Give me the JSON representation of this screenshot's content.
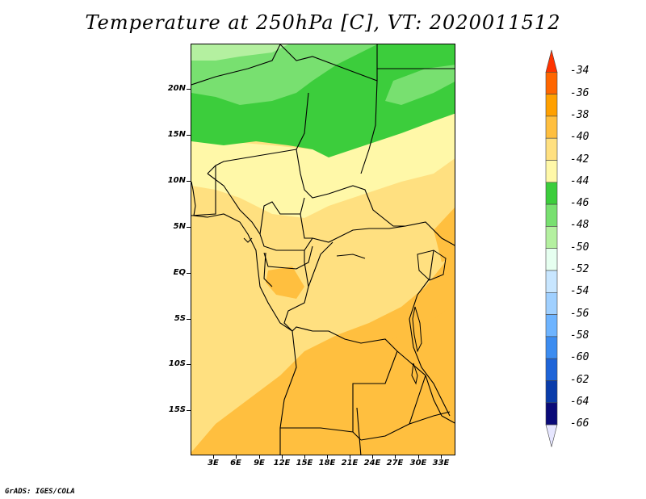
{
  "title": "Temperature at 250hPa [C], VT: 2020011512",
  "footer": "GrADS: IGES/COLA",
  "lat_labels": [
    "20N",
    "15N",
    "10N",
    "5N",
    "EQ",
    "5S",
    "10S",
    "15S"
  ],
  "lon_labels": [
    "3E",
    "6E",
    "9E",
    "12E",
    "15E",
    "18E",
    "21E",
    "24E",
    "27E",
    "30E",
    "33E"
  ],
  "legend": {
    "labels": [
      "-34",
      "-36",
      "-38",
      "-40",
      "-42",
      "-44",
      "-46",
      "-48",
      "-50",
      "-52",
      "-54",
      "-56",
      "-58",
      "-60",
      "-62",
      "-64",
      "-66"
    ],
    "colors": [
      "#ff3300",
      "#ff6600",
      "#ffa000",
      "#ffbf3f",
      "#ffe080",
      "#fff8a8",
      "#3ccd3c",
      "#78e070",
      "#b4f0a0",
      "#e6fff0",
      "#c8e6ff",
      "#a0d0ff",
      "#6eb4ff",
      "#3c8cf0",
      "#1e64d8",
      "#0a3caa",
      "#0a0a78",
      "#e6e6ff"
    ]
  },
  "map": {
    "region": "Central Africa",
    "lon_range": [
      "0E",
      "35E"
    ],
    "lat_range": [
      "20S",
      "25N"
    ]
  }
}
